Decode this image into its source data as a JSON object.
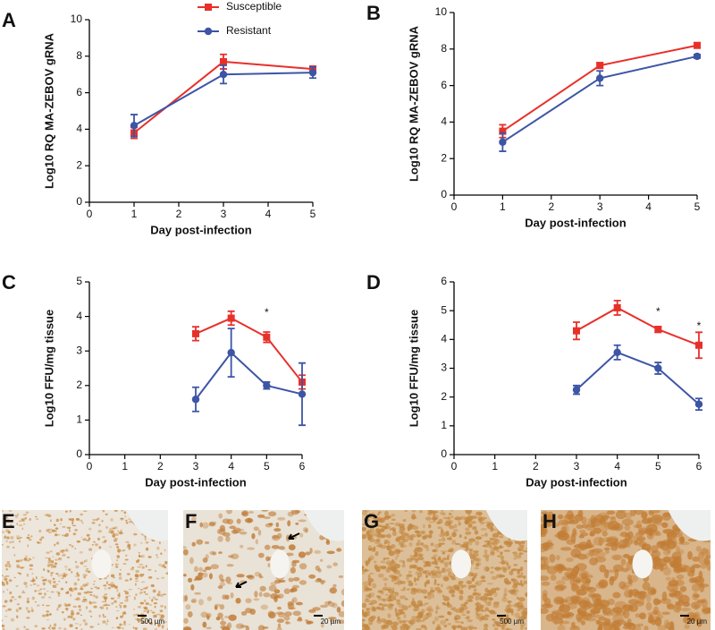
{
  "chart_data": [
    {
      "type": "line",
      "label": "A",
      "y_label": "Log10 RQ MA-ZEBOV gRNA",
      "x_label": "Day post-infection",
      "x": [
        1,
        3,
        5
      ],
      "xlim": [
        0,
        5
      ],
      "xticks": [
        0,
        1,
        2,
        3,
        4,
        5
      ],
      "ylim": [
        0,
        10
      ],
      "yticks": [
        0,
        2,
        4,
        6,
        8,
        10
      ],
      "legend": "upper-center",
      "series": [
        {
          "name": "Susceptible",
          "color": "#e8302a",
          "marker": "square",
          "values": [
            3.8,
            7.7,
            7.3
          ],
          "errors": [
            0.3,
            0.4,
            0.15
          ]
        },
        {
          "name": "Resistant",
          "color": "#3d55a5",
          "marker": "circle",
          "values": [
            4.2,
            7.0,
            7.1
          ],
          "errors": [
            0.6,
            0.5,
            0.3
          ]
        }
      ]
    },
    {
      "type": "line",
      "label": "B",
      "y_label": "Log10 RQ MA-ZEBOV gRNA",
      "x_label": "Day post-infection",
      "x": [
        1,
        3,
        5
      ],
      "xlim": [
        0,
        5
      ],
      "xticks": [
        0,
        1,
        2,
        3,
        4,
        5
      ],
      "ylim": [
        0,
        10
      ],
      "yticks": [
        0,
        2,
        4,
        6,
        8,
        10
      ],
      "series": [
        {
          "color": "#e8302a",
          "marker": "square",
          "values": [
            3.5,
            7.1,
            8.2
          ],
          "errors": [
            0.35,
            0.15,
            0.1
          ]
        },
        {
          "color": "#3d55a5",
          "marker": "circle",
          "values": [
            2.9,
            6.4,
            7.6
          ],
          "errors": [
            0.5,
            0.4,
            0.1
          ]
        }
      ]
    },
    {
      "type": "line",
      "label": "C",
      "y_label": "Log10 FFU/mg tissue",
      "x_label": "Day post-infection",
      "x": [
        3,
        4,
        5,
        6
      ],
      "xlim": [
        0,
        6
      ],
      "xticks": [
        0,
        1,
        2,
        3,
        4,
        5,
        6
      ],
      "ylim": [
        0,
        5
      ],
      "yticks": [
        0,
        1,
        2,
        3,
        4,
        5
      ],
      "annotations": [
        {
          "text": "*",
          "x": 5,
          "y": 4.1
        }
      ],
      "series": [
        {
          "color": "#e8302a",
          "marker": "square",
          "values": [
            3.5,
            3.95,
            3.4,
            2.1
          ],
          "errors": [
            0.2,
            0.2,
            0.15,
            0.2
          ]
        },
        {
          "color": "#3d55a5",
          "marker": "circle",
          "values": [
            1.6,
            2.95,
            2.0,
            1.75
          ],
          "errors": [
            0.35,
            0.7,
            0.1,
            0.9
          ]
        }
      ]
    },
    {
      "type": "line",
      "label": "D",
      "y_label": "Log10 FFU/mg tissue",
      "x_label": "Day post-infection",
      "x": [
        3,
        4,
        5,
        6
      ],
      "xlim": [
        0,
        6
      ],
      "xticks": [
        0,
        1,
        2,
        3,
        4,
        5,
        6
      ],
      "ylim": [
        0,
        6
      ],
      "yticks": [
        0,
        1,
        2,
        3,
        4,
        5,
        6
      ],
      "annotations": [
        {
          "text": "*",
          "x": 5,
          "y": 4.95
        },
        {
          "text": "*",
          "x": 6,
          "y": 4.45
        }
      ],
      "series": [
        {
          "color": "#e8302a",
          "marker": "square",
          "values": [
            4.3,
            5.1,
            4.35,
            3.8
          ],
          "errors": [
            0.3,
            0.25,
            0.1,
            0.45
          ]
        },
        {
          "color": "#3d55a5",
          "marker": "circle",
          "values": [
            2.25,
            3.55,
            3.0,
            1.75
          ],
          "errors": [
            0.15,
            0.25,
            0.2,
            0.2
          ]
        }
      ]
    }
  ],
  "images": [
    {
      "label": "E",
      "scale": "500 µm"
    },
    {
      "label": "F",
      "scale": "20 µm"
    },
    {
      "label": "G",
      "scale": "500 µm"
    },
    {
      "label": "H",
      "scale": "20 µm"
    }
  ]
}
